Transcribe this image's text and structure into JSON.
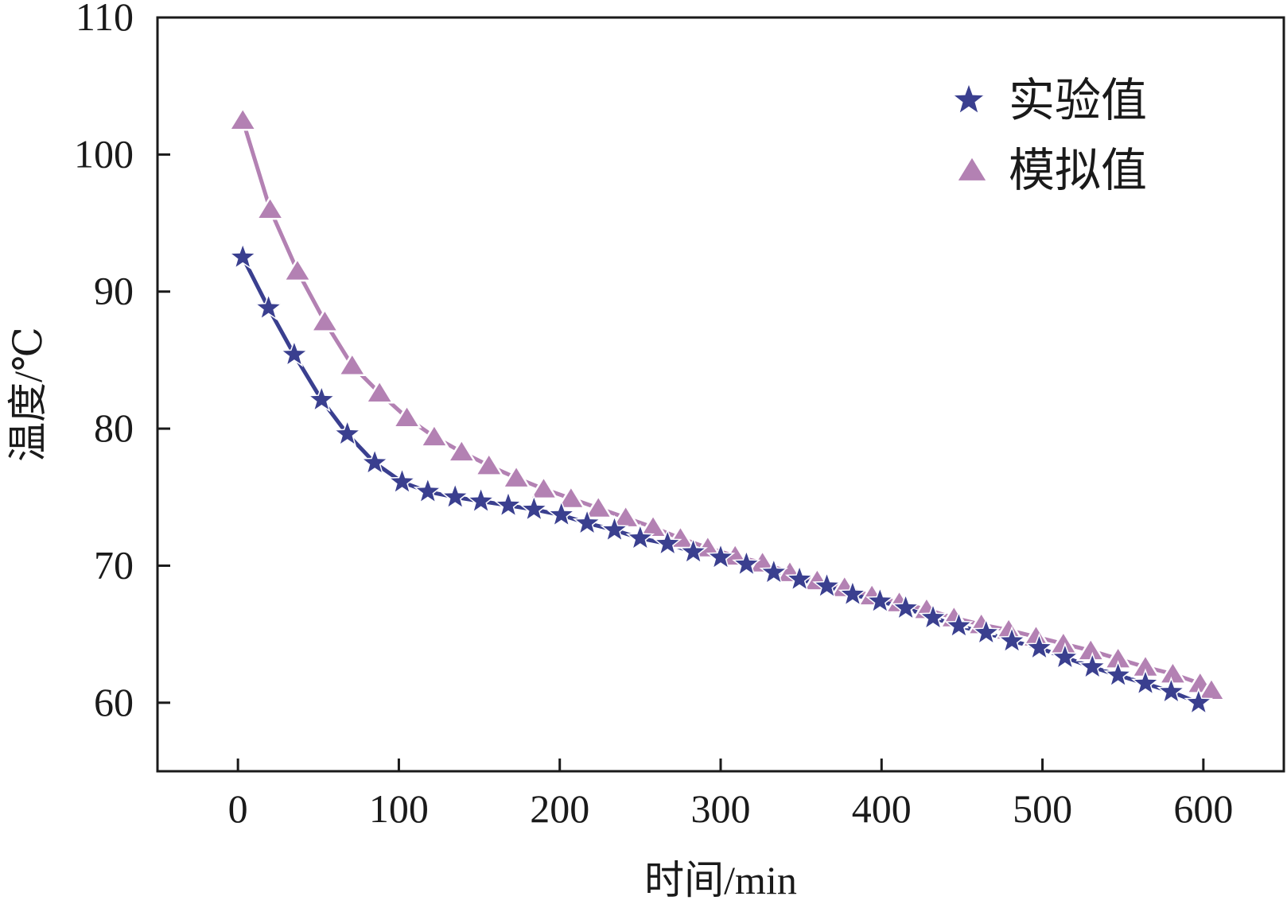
{
  "chart_data": {
    "type": "line",
    "xlabel": "时间/min",
    "ylabel": "温度/℃",
    "xlim": [
      -50,
      650
    ],
    "ylim": [
      55,
      110
    ],
    "xticks": [
      0,
      100,
      200,
      300,
      400,
      500,
      600
    ],
    "yticks": [
      60,
      70,
      80,
      90,
      100,
      110
    ],
    "legend_position": "top-right",
    "series": [
      {
        "name": "实验值",
        "marker": "star",
        "color": "#3a3f8f",
        "x": [
          3,
          19,
          35,
          52,
          68,
          85,
          102,
          118,
          135,
          151,
          168,
          184,
          201,
          217,
          234,
          250,
          267,
          283,
          300,
          316,
          333,
          349,
          366,
          382,
          399,
          415,
          432,
          448,
          465,
          481,
          498,
          514,
          531,
          547,
          564,
          580,
          597
        ],
        "y": [
          92.5,
          88.8,
          85.4,
          82.1,
          79.6,
          77.5,
          76.1,
          75.4,
          75.0,
          74.7,
          74.4,
          74.1,
          73.7,
          73.1,
          72.6,
          72.0,
          71.6,
          71.0,
          70.6,
          70.1,
          69.5,
          69.0,
          68.5,
          67.9,
          67.4,
          66.9,
          66.2,
          65.6,
          65.1,
          64.5,
          64.0,
          63.3,
          62.6,
          62.0,
          61.4,
          60.8,
          60.0
        ]
      },
      {
        "name": "模拟值",
        "marker": "triangle",
        "color": "#b381b3",
        "x": [
          3,
          20,
          37,
          54,
          71,
          88,
          105,
          122,
          139,
          156,
          173,
          190,
          207,
          224,
          241,
          258,
          275,
          292,
          309,
          326,
          343,
          360,
          377,
          394,
          411,
          428,
          445,
          462,
          479,
          496,
          513,
          530,
          547,
          564,
          581,
          598,
          605
        ],
        "y": [
          102.5,
          96.0,
          91.5,
          87.8,
          84.6,
          82.6,
          80.8,
          79.4,
          78.3,
          77.3,
          76.4,
          75.6,
          74.9,
          74.2,
          73.5,
          72.8,
          72.0,
          71.3,
          70.7,
          70.2,
          69.5,
          68.9,
          68.4,
          67.8,
          67.3,
          66.8,
          66.2,
          65.7,
          65.3,
          64.8,
          64.3,
          63.8,
          63.2,
          62.6,
          62.1,
          61.4,
          60.9
        ]
      }
    ]
  }
}
